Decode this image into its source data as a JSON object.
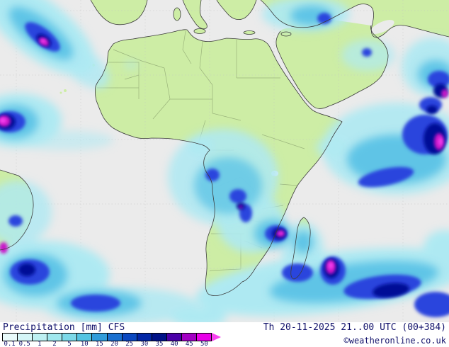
{
  "map": {
    "region": "Africa",
    "description": "CFS precipitation forecast map",
    "colors": {
      "ocean": "#ebebeb",
      "land": "#cdeda5",
      "coast": "#3c3c3c",
      "border": "#92aa74",
      "grid": "#c2c2c2",
      "precip": {
        "pale": "#cdf2f6",
        "cyan": "#aee9f2",
        "mid": "#5fc4e6",
        "blue": "#2b45dd",
        "navy": "#000a96",
        "magenta": "#c813c8",
        "pink": "#f743f0"
      }
    }
  },
  "legend": {
    "title": "Precipitation [mm] CFS",
    "datetime": "Th 20-11-2025 21..00 UTC (00+384)",
    "copyright": "©weatheronline.co.uk",
    "text_color": "#12126b",
    "scale_values": [
      "0.1",
      "0.5",
      "1",
      "2",
      "5",
      "10",
      "15",
      "20",
      "25",
      "30",
      "35",
      "40",
      "45",
      "50"
    ],
    "scale_colors": [
      "#e9fbfb",
      "#d5f6f7",
      "#bdf0f2",
      "#a0e8ee",
      "#7cd9e8",
      "#54c4e2",
      "#309cda",
      "#1a70cf",
      "#0a48c0",
      "#0226a6",
      "#001288",
      "#4b00a8",
      "#a300c4",
      "#e800e8"
    ],
    "arrow_color": "#f743f0"
  }
}
